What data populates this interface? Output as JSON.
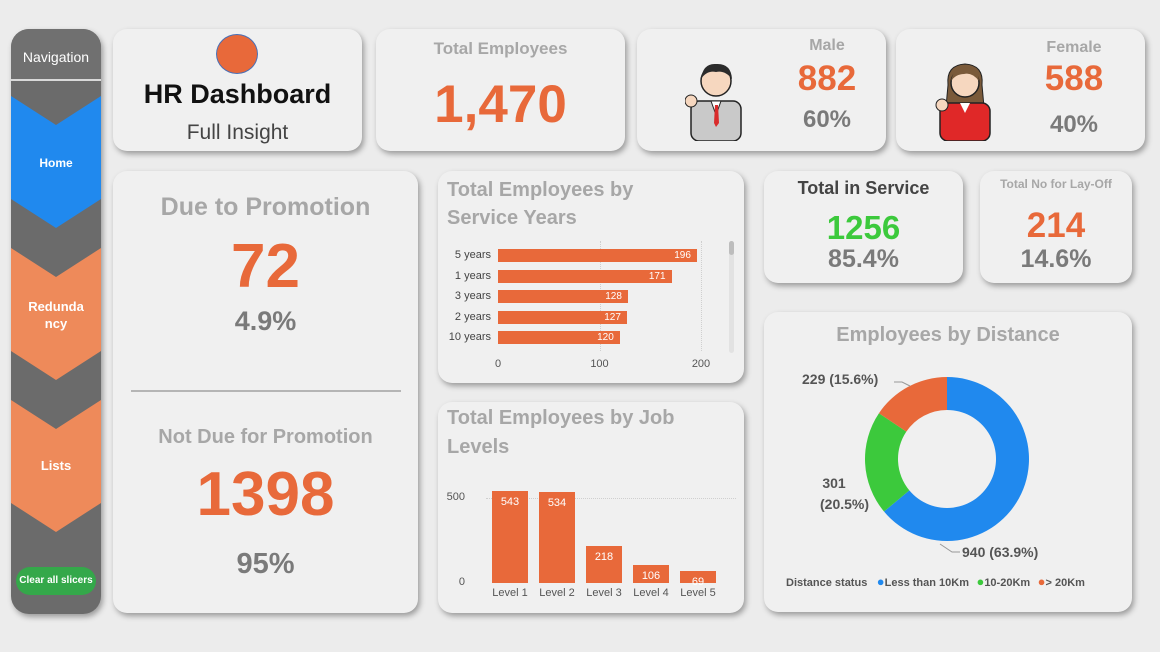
{
  "nav": {
    "title": "Navigation",
    "home": "Home",
    "redundancy": "Redunda\nncy",
    "lists": "Lists",
    "clear": "Clear all slicers"
  },
  "header": {
    "title": "HR Dashboard",
    "subtitle": "Full Insight"
  },
  "total": {
    "label": "Total Employees",
    "value": "1,470"
  },
  "male": {
    "label": "Male",
    "value": "882",
    "pct": "60%"
  },
  "female": {
    "label": "Female",
    "value": "588",
    "pct": "40%"
  },
  "promotion": {
    "due_label": "Due to Promotion",
    "due_value": "72",
    "due_pct": "4.9%",
    "not_label": "Not Due for Promotion",
    "not_value": "1398",
    "not_pct": "95%"
  },
  "service": {
    "label": "Total in Service",
    "value": "1256",
    "pct": "85.4%"
  },
  "layoff": {
    "label": "Total No for Lay-Off",
    "value": "214",
    "pct": "14.6%"
  },
  "colors": {
    "accent": "#e8693a",
    "blue": "#2089ee",
    "green": "#3cc93c",
    "nav": "#6b6b6b"
  },
  "chart_data": [
    {
      "type": "bar",
      "orientation": "horizontal",
      "title": "Total Employees by Service Years",
      "categories": [
        "5 years",
        "1 years",
        "3 years",
        "2 years",
        "10 years"
      ],
      "values": [
        196,
        171,
        128,
        127,
        120
      ],
      "xticks": [
        "0",
        "100",
        "200"
      ],
      "xlim": [
        0,
        210
      ]
    },
    {
      "type": "bar",
      "title": "Total Employees by Job Levels",
      "categories": [
        "Level 1",
        "Level 2",
        "Level 3",
        "Level 4",
        "Level 5"
      ],
      "values": [
        543,
        534,
        218,
        106,
        69
      ],
      "yticks": [
        "500",
        "0"
      ],
      "ylim": [
        0,
        560
      ]
    },
    {
      "type": "pie",
      "title": "Employees by Distance",
      "legend_title": "Distance status",
      "slices": [
        {
          "name": "Less than 10Km",
          "value": 940,
          "label": "940 (63.9%)",
          "color": "#2089ee"
        },
        {
          "name": "10-20Km",
          "value": 301,
          "label_line1": "301",
          "label_line2": "(20.5%)",
          "color": "#3cc93c"
        },
        {
          "name": "> 20Km",
          "value": 229,
          "label": "229 (15.6%)",
          "color": "#e8693a"
        }
      ]
    }
  ]
}
